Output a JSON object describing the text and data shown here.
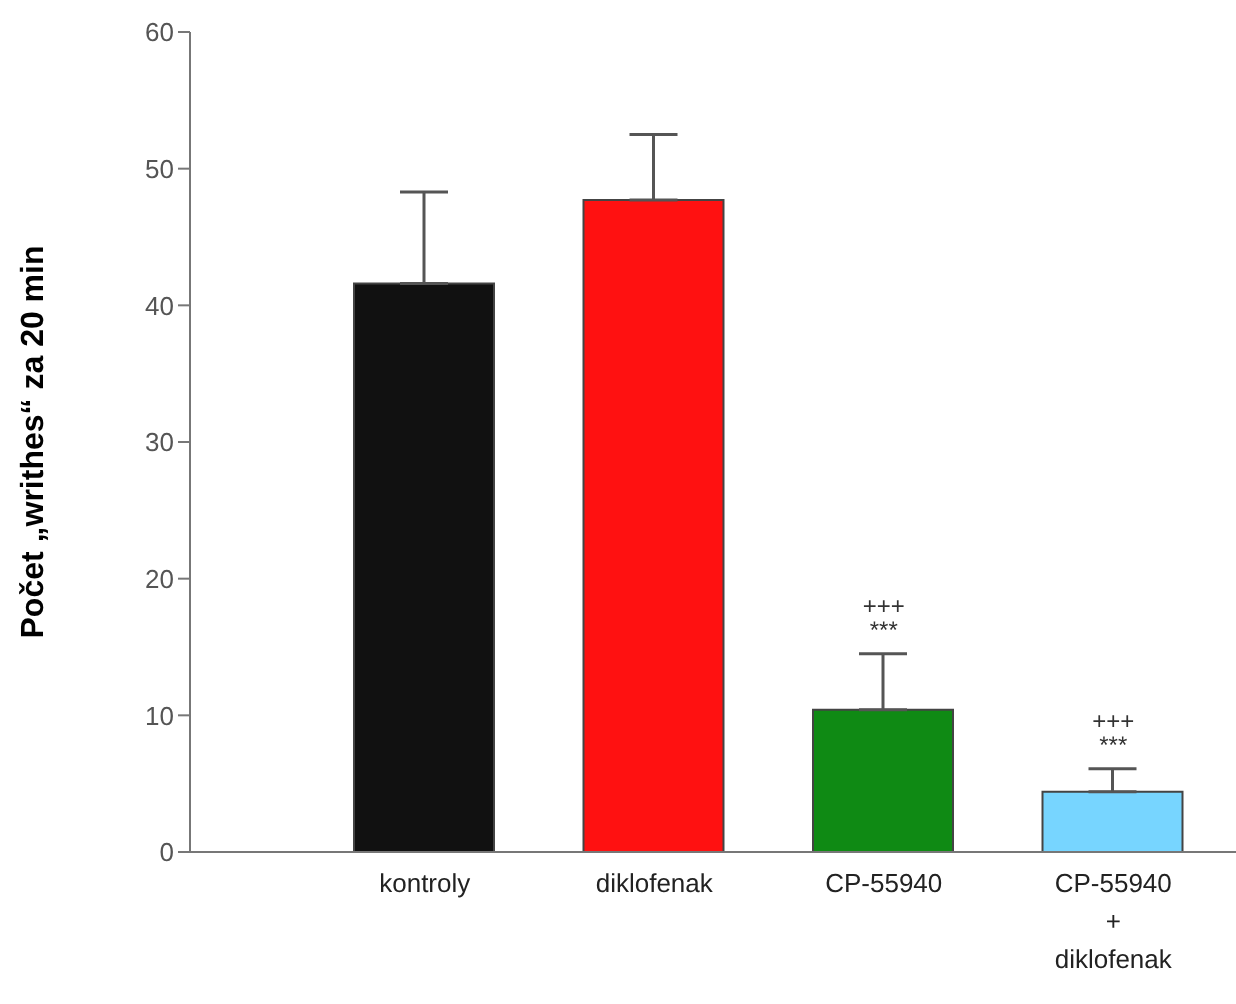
{
  "chart_data": {
    "type": "bar",
    "ylabel": "Počet „writhes“ za 20 min",
    "categories": [
      "kontroly",
      "diklofenak",
      "CP-55940",
      "CP-55940\n+\ndiklofenak"
    ],
    "values": [
      41.6,
      47.7,
      10.4,
      4.4
    ],
    "errors": [
      6.7,
      4.8,
      4.1,
      1.7
    ],
    "colors": [
      "#111111",
      "#ff1111",
      "#0f8a14",
      "#77d5ff"
    ],
    "ylim": [
      0,
      60
    ],
    "yticks": [
      0,
      10,
      20,
      30,
      40,
      50,
      60
    ],
    "grid": false,
    "legend": false,
    "annotations": [
      {
        "text": "+++\n***",
        "x": "CP-55940",
        "y": 14.5
      },
      {
        "text": "+++\n***",
        "x": "CP-55940\n+\ndiklofenak",
        "y": 6.1
      }
    ]
  }
}
